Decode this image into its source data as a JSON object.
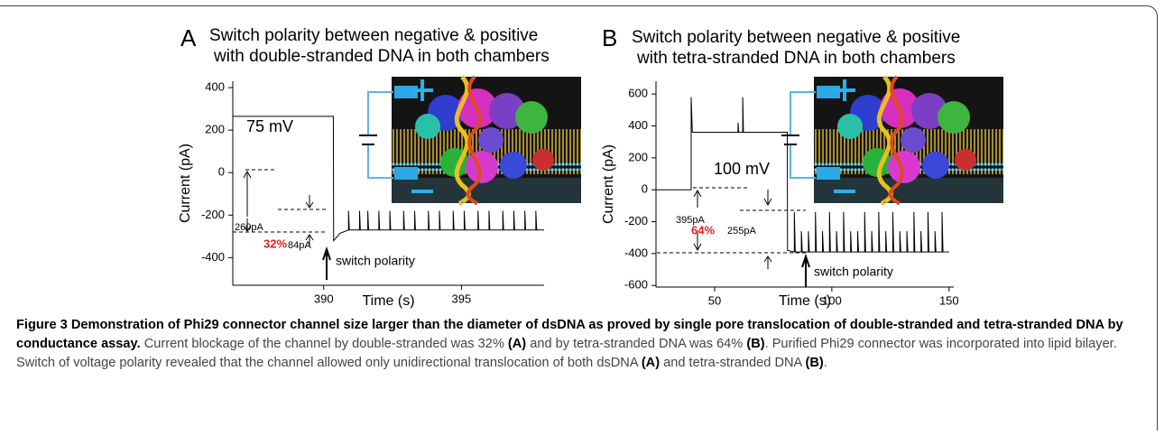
{
  "chart_data": [
    {
      "type": "line",
      "panel_label": "A",
      "title": [
        "Switch polarity between negative & positive",
        "with double-stranded DNA in both chambers"
      ],
      "x_label": "Time (s)",
      "y_label": "Current (pA)",
      "xlim": [
        386.7,
        398
      ],
      "ylim": [
        -530,
        430
      ],
      "xticks": [
        390,
        395
      ],
      "yticks": [
        -400,
        -200,
        0,
        200,
        400
      ],
      "color": "#000000",
      "annotations": [
        "75 mV",
        "260pA",
        "32%",
        "84pA",
        "switch polarity"
      ],
      "x": [
        386.7,
        390.35,
        390.36,
        390.6,
        390.9,
        390.9,
        390.93,
        391.3,
        391.3,
        391.33,
        391.6,
        391.6,
        391.63,
        392.0,
        392.0,
        392.03,
        392.4,
        392.4,
        392.43,
        392.9,
        392.9,
        392.93,
        393.3,
        393.3,
        393.33,
        393.8,
        393.8,
        393.83,
        394.2,
        394.2,
        394.23,
        394.7,
        394.7,
        394.73,
        395.1,
        395.1,
        395.13,
        395.6,
        395.6,
        395.63,
        396.0,
        396.0,
        396.03,
        396.5,
        396.5,
        396.53,
        396.9,
        396.9,
        396.93,
        397.3,
        397.3,
        397.33,
        397.7,
        397.7,
        397.73,
        398.0
      ],
      "values": [
        265,
        265,
        -320,
        -285,
        -270,
        -180,
        -270,
        -270,
        -180,
        -270,
        -270,
        -180,
        -270,
        -270,
        -180,
        -270,
        -270,
        -180,
        -270,
        -270,
        -180,
        -270,
        -270,
        -180,
        -270,
        -270,
        -180,
        -270,
        -270,
        -180,
        -270,
        -270,
        -180,
        -270,
        -270,
        -180,
        -270,
        -270,
        -180,
        -270,
        -270,
        -180,
        -270,
        -270,
        -180,
        -270,
        -270,
        -180,
        -270,
        -270,
        -180,
        -270,
        -270,
        -180,
        -270,
        -270
      ]
    },
    {
      "type": "line",
      "panel_label": "B",
      "title": [
        "Switch polarity between negative & positive",
        "with tetra-stranded DNA in both chambers"
      ],
      "x_label": "Time (s)",
      "y_label": "Current (pA)",
      "xlim": [
        25,
        152
      ],
      "ylim": [
        -610,
        680
      ],
      "xticks": [
        50,
        100,
        150
      ],
      "yticks": [
        -600,
        -400,
        -200,
        0,
        200,
        400,
        600
      ],
      "color": "#000000",
      "annotations": [
        "100 mV",
        "395pA",
        "64%",
        "255pA",
        "switch polarity"
      ],
      "x": [
        25,
        40,
        40,
        40.5,
        60,
        60,
        60.3,
        62,
        62,
        62.3,
        81,
        81.1,
        84,
        84,
        84.4,
        87,
        87,
        87.4,
        90,
        90,
        90.4,
        93,
        93,
        93.4,
        96,
        96,
        96.4,
        99,
        99,
        99.4,
        102,
        102,
        102.4,
        105,
        105,
        105.4,
        108,
        108,
        108.4,
        111,
        111,
        111.4,
        114,
        114,
        114.4,
        117,
        117,
        117.4,
        120,
        120,
        120.4,
        123,
        123,
        123.4,
        126,
        126,
        126.4,
        129,
        129,
        129.4,
        132,
        132,
        132.4,
        135,
        135,
        135.4,
        138,
        138,
        138.4,
        141,
        141,
        141.4,
        144,
        144,
        144.4,
        147,
        147,
        147.4,
        150
      ],
      "values": [
        0,
        0,
        580,
        360,
        360,
        420,
        360,
        360,
        580,
        360,
        360,
        -380,
        -390,
        -140,
        -390,
        -390,
        -260,
        -390,
        -390,
        -260,
        -390,
        -390,
        -140,
        -390,
        -390,
        -260,
        -390,
        -390,
        -140,
        -390,
        -390,
        -260,
        -390,
        -390,
        -140,
        -390,
        -390,
        -260,
        -390,
        -390,
        -260,
        -390,
        -390,
        -140,
        -390,
        -390,
        -260,
        -390,
        -390,
        -140,
        -390,
        -390,
        -260,
        -390,
        -390,
        -140,
        -390,
        -390,
        -260,
        -390,
        -390,
        -260,
        -390,
        -390,
        -140,
        -390,
        -390,
        -260,
        -390,
        -390,
        -140,
        -390,
        -390,
        -260,
        -390,
        -390,
        -140,
        -390,
        -390
      ]
    }
  ],
  "caption": {
    "title": "Figure 3 Demonstration of Phi29 connector channel size larger than the diameter of dsDNA as proved by single pore translocation of double-stranded and tetra-stranded DNA by conductance assay.",
    "body": [
      {
        "text": "Current blockage of the channel by double-stranded was 32% "
      },
      {
        "text": "(A)",
        "bold": true
      },
      {
        "text": " and by tetra-stranded DNA was 64% "
      },
      {
        "text": "(B)",
        "bold": true
      },
      {
        "text": ". Purified Phi29 connector was incorporated into lipid bilayer. Switch of voltage polarity revealed that the channel allowed only unidirectional translocation of both dsDNA "
      },
      {
        "text": "(A)",
        "bold": true
      },
      {
        "text": " and tetra-stranded DNA "
      },
      {
        "text": "(B)",
        "bold": true
      },
      {
        "text": "."
      }
    ]
  }
}
